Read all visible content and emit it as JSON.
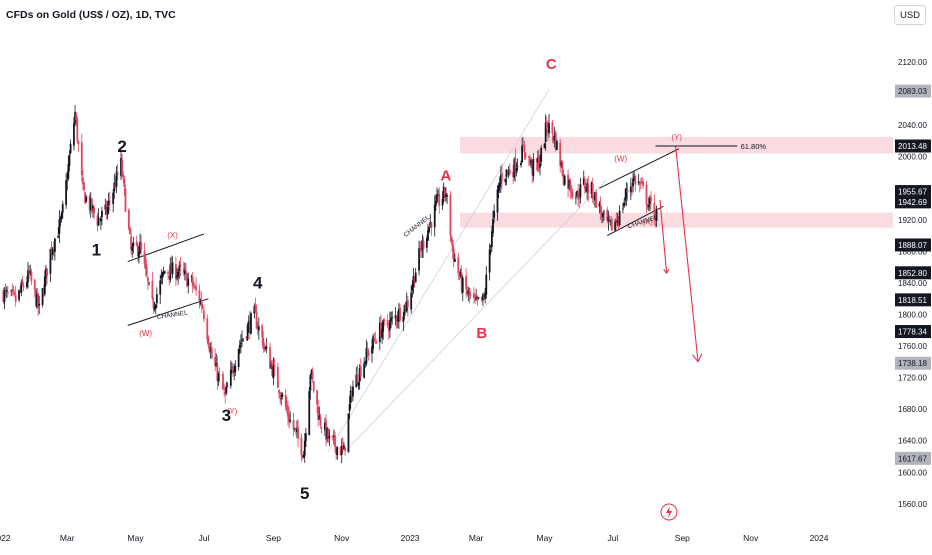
{
  "header": {
    "symbol_title": "CFDs on Gold (US$ / OZ), 1D, TVC",
    "currency_button": "USD"
  },
  "colors": {
    "up_candle": "#131722",
    "down_candle": "#e0455e",
    "wave_label_black": "#131722",
    "wave_label_red": "#e8334a",
    "zone_fill": "#f8cfd6",
    "projection_arrow": "#e8334a",
    "channel_line": "#131722",
    "channel_projection": "#c8cbd2"
  },
  "wave_labels": [
    {
      "text": "1",
      "color": "black"
    },
    {
      "text": "2",
      "color": "black"
    },
    {
      "text": "3",
      "color": "black"
    },
    {
      "text": "4",
      "color": "black"
    },
    {
      "text": "5",
      "color": "black"
    },
    {
      "text": "A",
      "color": "red"
    },
    {
      "text": "B",
      "color": "red"
    },
    {
      "text": "C",
      "color": "red"
    },
    {
      "text": "(X)",
      "color": "red"
    },
    {
      "text": "(W)",
      "color": "red"
    },
    {
      "text": "(Y)",
      "color": "red"
    },
    {
      "text": "(W)",
      "color": "red"
    },
    {
      "text": "(Y)",
      "color": "red"
    },
    {
      "text": "(X)",
      "color": "red"
    }
  ],
  "annotations": {
    "channel_label": "CHANNEL",
    "fib_label": "61.80%"
  },
  "chart_data": {
    "type": "candlestick",
    "title": "CFDs on Gold (US$ / OZ), 1D, TVC",
    "y_axis": {
      "ticks": [
        "2120.00",
        "2080.00",
        "2040.00",
        "2000.00",
        "1960.00",
        "1920.00",
        "1880.00",
        "1840.00",
        "1800.00",
        "1760.00",
        "1720.00",
        "1680.00",
        "1640.00",
        "1600.00",
        "1560.00"
      ],
      "range": [
        1537,
        2163
      ]
    },
    "x_axis": {
      "ticks": [
        "2022",
        "Mar",
        "May",
        "Jul",
        "Sep",
        "Nov",
        "2023",
        "Mar",
        "May",
        "Jul",
        "Sep",
        "Nov",
        "2024"
      ],
      "range": [
        "2021-12-31",
        "2024-03-07"
      ]
    },
    "price_labels": [
      {
        "value": "2083.03",
        "style": "gray"
      },
      {
        "value": "2013.48",
        "style": "dark"
      },
      {
        "value": "1955.67",
        "style": "dark"
      },
      {
        "value": "1942.69",
        "style": "dark"
      },
      {
        "value": "1888.07",
        "style": "dark"
      },
      {
        "value": "1852.80",
        "style": "dark"
      },
      {
        "value": "1818.51",
        "style": "dark"
      },
      {
        "value": "1778.34",
        "style": "dark"
      },
      {
        "value": "1738.18",
        "style": "gray"
      },
      {
        "value": "1617.67",
        "style": "gray"
      }
    ],
    "zones": [
      {
        "from": 2004,
        "to": 2025
      },
      {
        "from": 1910,
        "to": 1929
      }
    ],
    "price_path": [
      [
        "2022-01-01",
        1828
      ],
      [
        "2022-01-14",
        1818
      ],
      [
        "2022-01-26",
        1850
      ],
      [
        "2022-02-04",
        1805
      ],
      [
        "2022-02-14",
        1880
      ],
      [
        "2022-02-24",
        1920
      ],
      [
        "2022-03-08",
        2055
      ],
      [
        "2022-03-15",
        1955
      ],
      [
        "2022-03-28",
        1920
      ],
      [
        "2022-04-05",
        1930
      ],
      [
        "2022-04-18",
        1990
      ],
      [
        "2022-04-27",
        1880
      ],
      [
        "2022-05-05",
        1885
      ],
      [
        "2022-05-16",
        1810
      ],
      [
        "2022-05-27",
        1855
      ],
      [
        "2022-06-08",
        1855
      ],
      [
        "2022-06-20",
        1840
      ],
      [
        "2022-06-30",
        1810
      ],
      [
        "2022-07-08",
        1745
      ],
      [
        "2022-07-20",
        1695
      ],
      [
        "2022-08-01",
        1760
      ],
      [
        "2022-08-15",
        1800
      ],
      [
        "2022-08-25",
        1755
      ],
      [
        "2022-09-05",
        1712
      ],
      [
        "2022-09-16",
        1665
      ],
      [
        "2022-09-28",
        1625
      ],
      [
        "2022-10-04",
        1728
      ],
      [
        "2022-10-12",
        1668
      ],
      [
        "2022-10-21",
        1640
      ],
      [
        "2022-11-03",
        1625
      ],
      [
        "2022-11-10",
        1705
      ],
      [
        "2022-11-22",
        1745
      ],
      [
        "2022-12-05",
        1780
      ],
      [
        "2022-12-15",
        1790
      ],
      [
        "2022-12-30",
        1815
      ],
      [
        "2023-01-10",
        1880
      ],
      [
        "2023-01-25",
        1940
      ],
      [
        "2023-02-02",
        1955
      ],
      [
        "2023-02-08",
        1880
      ],
      [
        "2023-02-16",
        1838
      ],
      [
        "2023-02-28",
        1812
      ],
      [
        "2023-03-08",
        1818
      ],
      [
        "2023-03-15",
        1908
      ],
      [
        "2023-03-23",
        1975
      ],
      [
        "2023-04-03",
        1985
      ],
      [
        "2023-04-13",
        2010
      ],
      [
        "2023-04-20",
        1985
      ],
      [
        "2023-04-27",
        1995
      ],
      [
        "2023-05-03",
        2040
      ],
      [
        "2023-05-10",
        2025
      ],
      [
        "2023-05-18",
        1975
      ],
      [
        "2023-05-30",
        1950
      ],
      [
        "2023-06-05",
        1965
      ],
      [
        "2023-06-13",
        1955
      ],
      [
        "2023-06-23",
        1920
      ],
      [
        "2023-06-29",
        1910
      ],
      [
        "2023-07-07",
        1925
      ],
      [
        "2023-07-14",
        1958
      ],
      [
        "2023-07-20",
        1972
      ],
      [
        "2023-07-26",
        1962
      ],
      [
        "2023-08-02",
        1940
      ],
      [
        "2023-08-09",
        1925
      ]
    ],
    "projections": [
      {
        "label": "long",
        "from": [
          "2023-08-26",
          2013
        ],
        "to": [
          "2023-09-15",
          1740
        ]
      },
      {
        "label": "short",
        "from": [
          "2023-08-12",
          1945
        ],
        "to": [
          "2023-08-18",
          1852
        ]
      }
    ],
    "fib_level": {
      "label": "61.80%",
      "value": 2013.48
    }
  }
}
